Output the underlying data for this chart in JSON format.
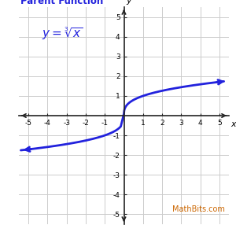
{
  "title": "Parent Function",
  "title_color": "#2222DD",
  "formula_color": "#2222DD",
  "curve_color": "#2222DD",
  "curve_linewidth": 2.0,
  "xlim": [
    -5.5,
    5.5
  ],
  "ylim": [
    -5.5,
    5.5
  ],
  "xticks": [
    -5,
    -4,
    -3,
    -2,
    -1,
    1,
    2,
    3,
    4,
    5
  ],
  "yticks": [
    -5,
    -4,
    -3,
    -2,
    -1,
    1,
    2,
    3,
    4,
    5
  ],
  "xlabel": "x",
  "ylabel": "y",
  "grid_color": "#cccccc",
  "axis_color": "#222222",
  "background_color": "#ffffff",
  "watermark": "MathBits.com",
  "watermark_color": "#cc6600",
  "curve_xmin": -5.4,
  "curve_xmax": 5.4,
  "title_fontsize": 8.5,
  "formula_fontsize": 11,
  "tick_fontsize": 6.5,
  "watermark_fontsize": 7
}
